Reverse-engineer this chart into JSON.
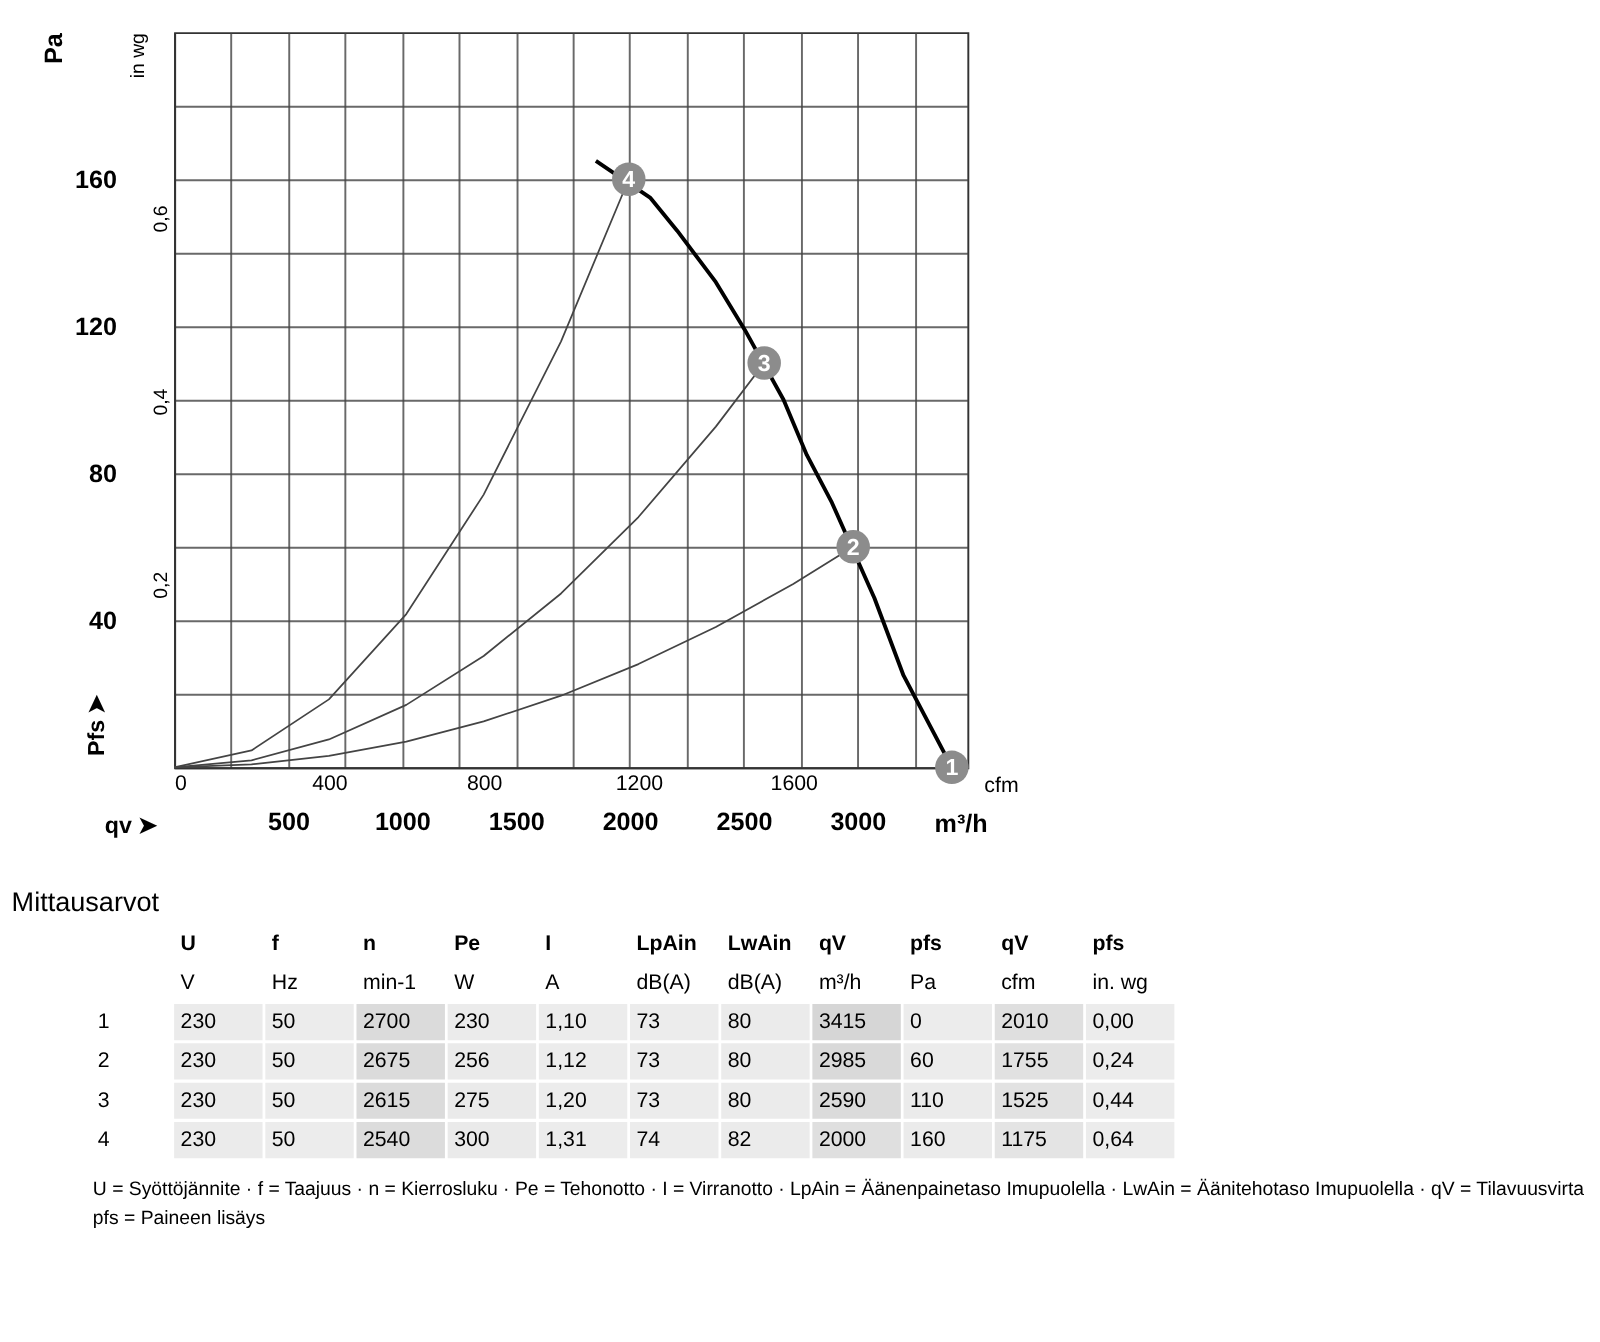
{
  "chart_data": [
    {
      "type": "line",
      "xlabel": "cfm",
      "ylabel": "Pa",
      "y2label": "in wg",
      "x2label": "m³/h",
      "grid": true,
      "annotations": [
        "Pfs ➤",
        "qv ➤",
        {
          "text": "1",
          "x": 2010,
          "y": 0
        },
        {
          "text": "2",
          "x": 1755,
          "y": 60
        },
        {
          "text": "3",
          "x": 1525,
          "y": 110
        },
        {
          "text": "4",
          "x": 1175,
          "y": 160
        }
      ],
      "xlim": [
        0,
        2050
      ],
      "xticks": [
        0,
        400,
        800,
        1200,
        1600
      ],
      "x2lim": [
        0,
        3483
      ],
      "x2ticks": [
        {
          "value": 250,
          "label": null
        },
        500,
        {
          "value": 750,
          "label": null
        },
        1000,
        {
          "value": 1250,
          "label": null
        },
        1500,
        {
          "value": 1750,
          "label": null
        },
        2000,
        {
          "value": 2250,
          "label": null
        },
        2500,
        {
          "value": 2750,
          "label": null
        },
        3000,
        {
          "value": 3250,
          "label": null
        }
      ],
      "ylim": [
        0,
        200
      ],
      "yticks": [
        {
          "value": 20,
          "label": null
        },
        40,
        {
          "value": 60,
          "label": null
        },
        80,
        {
          "value": 100,
          "label": null
        },
        120,
        {
          "value": 140,
          "label": null
        },
        160,
        {
          "value": 180,
          "label": null
        }
      ],
      "y2lim": [
        0,
        0.803
      ],
      "y2ticks": [
        {
          "value": 0.2,
          "label": "0,2"
        },
        {
          "value": 0.4,
          "label": "0,4"
        },
        {
          "value": 0.6,
          "label": "0,6"
        }
      ],
      "series": [
        {
          "type": "line",
          "color": "#000000",
          "x": [
            1090,
            1230,
            1300,
            1400,
            1475,
            1575,
            1635,
            1700,
            1810,
            1885,
            2010
          ],
          "values": [
            165,
            155,
            146,
            132,
            119,
            100,
            85,
            72,
            46,
            25,
            0
          ]
        },
        {
          "type": "line",
          "color": "#444444",
          "x": [
            0,
            200,
            400,
            600,
            800,
            1000,
            1175
          ],
          "values": [
            0,
            4.6,
            18.5,
            41.7,
            74.2,
            115.9,
            160
          ]
        },
        {
          "type": "line",
          "color": "#444444",
          "x": [
            0,
            200,
            400,
            600,
            800,
            1000,
            1200,
            1400,
            1525
          ],
          "values": [
            0,
            1.9,
            7.6,
            17.0,
            30.3,
            47.3,
            68.1,
            92.7,
            110
          ]
        },
        {
          "type": "line",
          "color": "#444444",
          "x": [
            0,
            200,
            400,
            600,
            800,
            1000,
            1200,
            1400,
            1600,
            1755
          ],
          "values": [
            0,
            0.8,
            3.1,
            7.0,
            12.5,
            19.5,
            28.1,
            38.2,
            49.9,
            60
          ]
        },
        {
          "type": "scatter",
          "marker": "circle",
          "color": "#8c8c8c",
          "x": [
            2010,
            1755,
            1525,
            1175
          ],
          "values": [
            0,
            60,
            110,
            160
          ]
        }
      ]
    },
    {
      "type": "heatmap",
      "title": "Mittausarvot",
      "categories": [
        "U",
        "f",
        "n",
        "Pe",
        "I",
        "LpAin",
        "LwAin",
        "qV",
        "pfs",
        "qV",
        "pfs"
      ],
      "y_categories": [
        "1",
        "2",
        "3",
        "4"
      ],
      "annotations": [
        "V",
        "Hz",
        "min-1",
        "W",
        "A",
        "dB(A)",
        "dB(A)",
        "m³/h",
        "Pa",
        "cfm",
        "in. wg",
        "U = Syöttöjännite · f = Taajuus · n = Kierrosluku · Pe = Tehonotto · I = Virranotto · LpAin = Äänenpainetaso Imupuolella · LwAin = Äänitehotaso Imupuolella · qV = Tilavuusvirta",
        "pfs = Paineen lisäys"
      ],
      "cells": [
        [
          230,
          50,
          2700,
          230,
          1.1,
          73,
          80,
          3415,
          0,
          2010,
          0.0
        ],
        [
          230,
          50,
          2675,
          256,
          1.12,
          73,
          80,
          2985,
          60,
          1755,
          0.24
        ],
        [
          230,
          50,
          2615,
          275,
          1.2,
          73,
          80,
          2590,
          110,
          1525,
          0.44
        ],
        [
          230,
          50,
          2540,
          300,
          1.31,
          74,
          82,
          2000,
          160,
          1175,
          0.64
        ]
      ],
      "cell_labels": [
        [
          "230",
          "50",
          "2700",
          "230",
          "1,10",
          "73",
          "80",
          "3415",
          "0",
          "2010",
          "0,00"
        ],
        [
          "230",
          "50",
          "2675",
          "256",
          "1,12",
          "73",
          "80",
          "2985",
          "60",
          "1755",
          "0,24"
        ],
        [
          "230",
          "50",
          "2615",
          "275",
          "1,20",
          "73",
          "80",
          "2590",
          "110",
          "1525",
          "0,44"
        ],
        [
          "230",
          "50",
          "2540",
          "300",
          "1,31",
          "74",
          "82",
          "2000",
          "160",
          "1175",
          "0,64"
        ]
      ]
    }
  ]
}
